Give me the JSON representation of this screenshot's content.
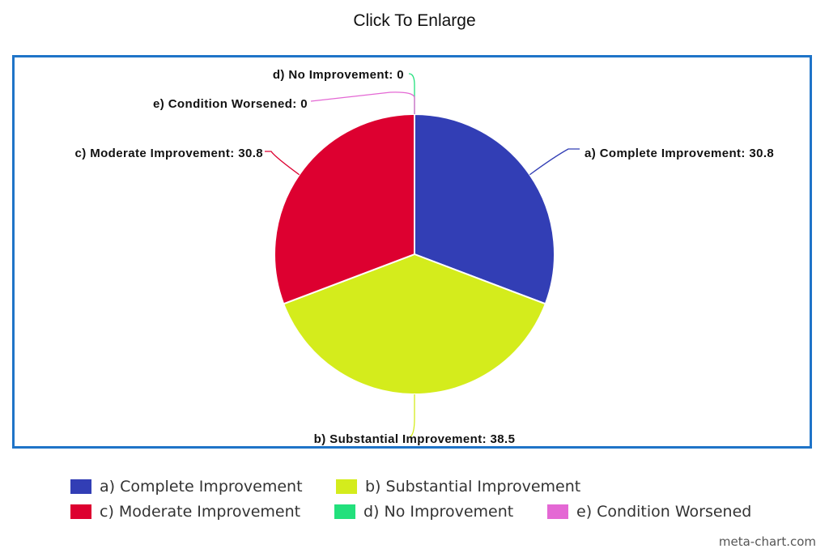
{
  "page": {
    "title": "Click To Enlarge",
    "watermark": "meta-chart.com"
  },
  "chart_data": {
    "type": "pie",
    "title": "",
    "slices": [
      {
        "key": "a",
        "label": "a) Complete Improvement",
        "value": 30.8,
        "callout": "a) Complete Improvement: 30.8",
        "color": "#323eb5"
      },
      {
        "key": "b",
        "label": "b) Substantial Improvement",
        "value": 38.5,
        "callout": "b) Substantial Improvement: 38.5",
        "color": "#d4ec1c"
      },
      {
        "key": "c",
        "label": "c) Moderate Improvement",
        "value": 30.8,
        "callout": "c) Moderate Improvement: 30.8",
        "color": "#dd0030"
      },
      {
        "key": "d",
        "label": "d) No Improvement",
        "value": 0,
        "callout": "d) No Improvement: 0",
        "color": "#22e07c"
      },
      {
        "key": "e",
        "label": "e) Condition Worsened",
        "value": 0,
        "callout": "e) Condition Worsened: 0",
        "color": "#e468d4"
      }
    ],
    "legend_position": "bottom",
    "frame_color": "#1f74c8"
  }
}
